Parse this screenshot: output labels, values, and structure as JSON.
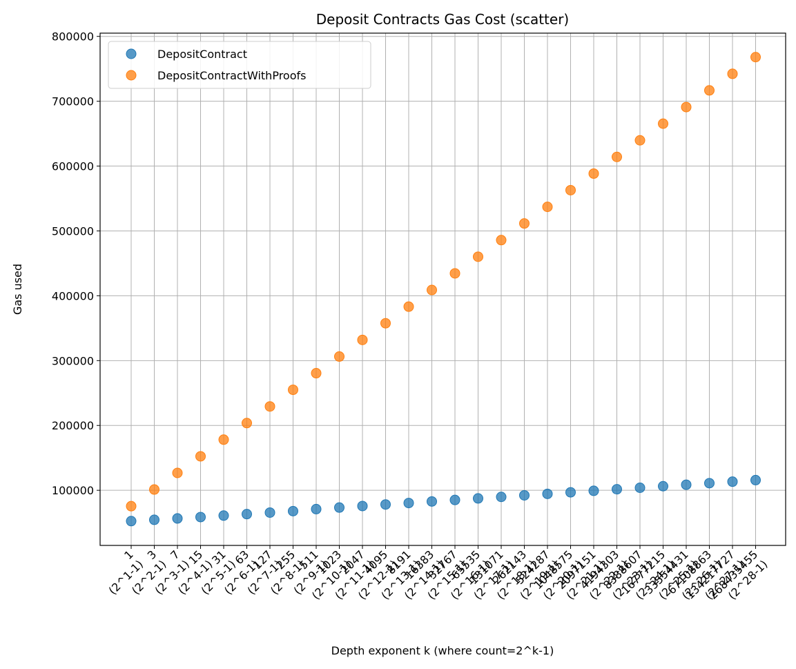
{
  "chart_data": {
    "type": "scatter",
    "title": "Deposit Contracts Gas Cost (scatter)",
    "xlabel": "Depth exponent k (where count=2^k-1)",
    "ylabel": "Gas used",
    "ylim": [
      15000,
      805000
    ],
    "yticks": [
      100000,
      200000,
      300000,
      400000,
      500000,
      600000,
      700000,
      800000
    ],
    "grid": true,
    "legend_position": "top-left",
    "x_tick_labels": [
      [
        "1",
        "(2^1-1)"
      ],
      [
        "3",
        "(2^2-1)"
      ],
      [
        "7",
        "(2^3-1)"
      ],
      [
        "15",
        "(2^4-1)"
      ],
      [
        "31",
        "(2^5-1)"
      ],
      [
        "63",
        "(2^6-1)"
      ],
      [
        "127",
        "(2^7-1)"
      ],
      [
        "255",
        "(2^8-1)"
      ],
      [
        "511",
        "(2^9-1)"
      ],
      [
        "1023",
        "(2^10-1)"
      ],
      [
        "2047",
        "(2^11-1)"
      ],
      [
        "4095",
        "(2^12-1)"
      ],
      [
        "8191",
        "(2^13-1)"
      ],
      [
        "16383",
        "(2^14-1)"
      ],
      [
        "32767",
        "(2^15-1)"
      ],
      [
        "65535",
        "(2^16-1)"
      ],
      [
        "131071",
        "(2^17-1)"
      ],
      [
        "262143",
        "(2^18-1)"
      ],
      [
        "524287",
        "(2^19-1)"
      ],
      [
        "1048575",
        "(2^20-1)"
      ],
      [
        "2097151",
        "(2^21-1)"
      ],
      [
        "4194303",
        "(2^22-1)"
      ],
      [
        "8388607",
        "(2^23-1)"
      ],
      [
        "16777215",
        "(2^24-1)"
      ],
      [
        "33554431",
        "(2^25-1)"
      ],
      [
        "67108863",
        "(2^26-1)"
      ],
      [
        "134217727",
        "(2^27-1)"
      ],
      [
        "268435455",
        "(2^28-1)"
      ]
    ],
    "x": [
      1,
      2,
      3,
      4,
      5,
      6,
      7,
      8,
      9,
      10,
      11,
      12,
      13,
      14,
      15,
      16,
      17,
      18,
      19,
      20,
      21,
      22,
      23,
      24,
      25,
      26,
      27,
      28
    ],
    "series": [
      {
        "name": "DepositContract",
        "color": "#1f77b4",
        "values": [
          52500,
          54500,
          56600,
          58700,
          61000,
          63300,
          65600,
          67900,
          71000,
          73400,
          75700,
          78100,
          80400,
          82800,
          85100,
          87500,
          89800,
          92200,
          94500,
          96900,
          99200,
          101600,
          103900,
          106300,
          108600,
          111000,
          113300,
          115700
        ]
      },
      {
        "name": "DepositContractWithProofs",
        "color": "#ff7f0e",
        "values": [
          75500,
          101200,
          126800,
          152400,
          178100,
          203700,
          229300,
          255000,
          280600,
          306300,
          331900,
          357600,
          383200,
          408900,
          434500,
          460200,
          485800,
          511500,
          537100,
          562800,
          588400,
          614100,
          639700,
          665400,
          691000,
          716700,
          742300,
          768000
        ]
      }
    ]
  }
}
